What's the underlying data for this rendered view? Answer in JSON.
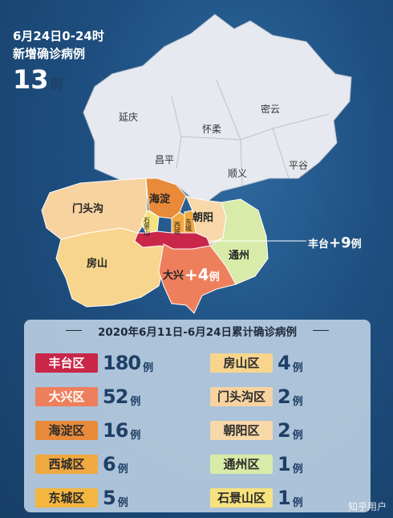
{
  "header": {
    "line1": "6月24日0-24时",
    "line2": "新增确诊病例",
    "count": "13",
    "unit": "例"
  },
  "map": {
    "labels": {
      "yanqing": "延庆",
      "miyun": "密云",
      "huairou": "怀柔",
      "changping": "昌平",
      "shunyi": "顺义",
      "pinggu": "平谷",
      "mentougou": "门头沟",
      "haidian": "海淀",
      "chaoyang": "朝阳",
      "shijingshan": "石景山",
      "xicheng": "西城",
      "dongcheng": "东城",
      "tongzhou": "通州",
      "fangshan": "房山",
      "daxing": "大兴"
    },
    "fengtai_callout": {
      "name": "丰台",
      "plus": "+9",
      "unit": "例"
    },
    "daxing_plus": {
      "plus": "+4",
      "unit": "例"
    },
    "colors": {
      "north": "#e6e9ef",
      "fengtai": "#c9264a",
      "daxing": "#ee7f5c",
      "haidian": "#e88a3a",
      "xicheng": "#f0a840",
      "dongcheng": "#f0a840",
      "shijingshan": "#f6e27e",
      "fangshan": "#f7d58c",
      "mentougou": "#f7d3a0",
      "chaoyang": "#f8d7a8",
      "tongzhou": "#d8eba8"
    }
  },
  "panel": {
    "title": "2020年6月11日-6月24日累计确诊病例",
    "left": [
      {
        "name": "丰台区",
        "count": "180",
        "unit": "例",
        "bg": "#c9264a",
        "fg": "#ffffff"
      },
      {
        "name": "大兴区",
        "count": "52",
        "unit": "例",
        "bg": "#ee7f5c",
        "fg": "#ffffff"
      },
      {
        "name": "海淀区",
        "count": "16",
        "unit": "例",
        "bg": "#e88a3a",
        "fg": "#2a2a2a"
      },
      {
        "name": "西城区",
        "count": "6",
        "unit": "例",
        "bg": "#f0a840",
        "fg": "#2a2a2a"
      },
      {
        "name": "东城区",
        "count": "5",
        "unit": "例",
        "bg": "#f3b640",
        "fg": "#2a2a2a"
      }
    ],
    "right": [
      {
        "name": "房山区",
        "count": "4",
        "unit": "例",
        "bg": "#f7d58c",
        "fg": "#2a2a2a"
      },
      {
        "name": "门头沟区",
        "count": "2",
        "unit": "例",
        "bg": "#f7d3a0",
        "fg": "#2a2a2a"
      },
      {
        "name": "朝阳区",
        "count": "2",
        "unit": "例",
        "bg": "#f8d7a8",
        "fg": "#2a2a2a"
      },
      {
        "name": "通州区",
        "count": "1",
        "unit": "例",
        "bg": "#d8eba8",
        "fg": "#2a2a2a"
      },
      {
        "name": "石景山区",
        "count": "1",
        "unit": "例",
        "bg": "#f6e27e",
        "fg": "#2a2a2a"
      }
    ]
  },
  "watermark": "知乎用户"
}
